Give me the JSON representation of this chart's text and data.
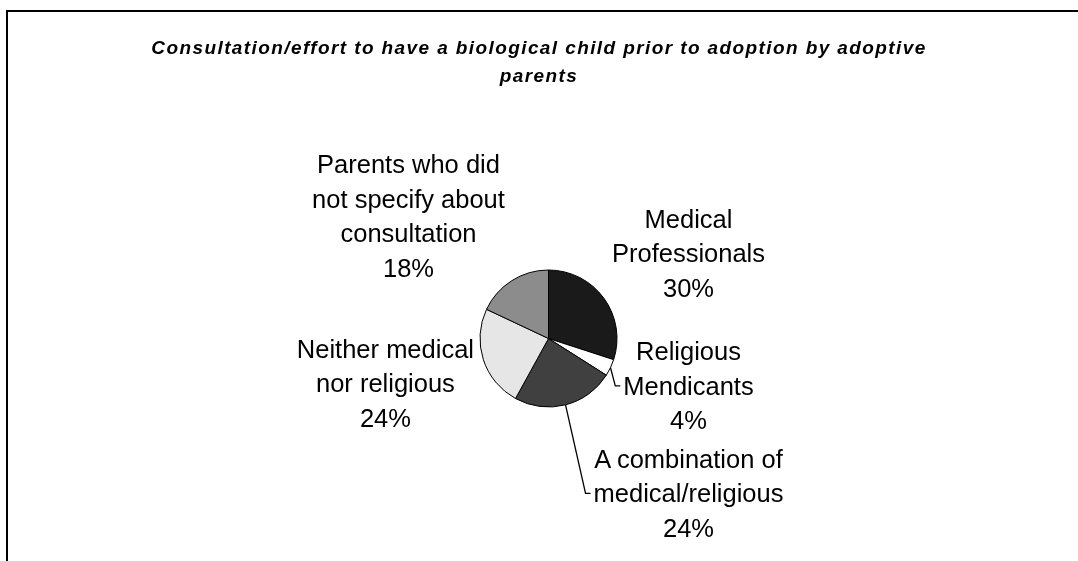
{
  "chart_data": {
    "type": "pie",
    "title": "Consultation/effort to have a biological child prior to adoption by adoptive parents",
    "categories": [
      "Medical Professionals",
      "Religious Mendicants",
      "A combination of medical/religious",
      "Neither medical nor religious",
      "Parents who did not specify about consultation"
    ],
    "values": [
      30,
      4,
      24,
      24,
      18
    ],
    "value_labels": [
      "30%",
      "4%",
      "24%",
      "24%",
      "18%"
    ],
    "colors": [
      "#1a1a1a",
      "#ffffff",
      "#404040",
      "#e6e6e6",
      "#8c8c8c"
    ]
  }
}
